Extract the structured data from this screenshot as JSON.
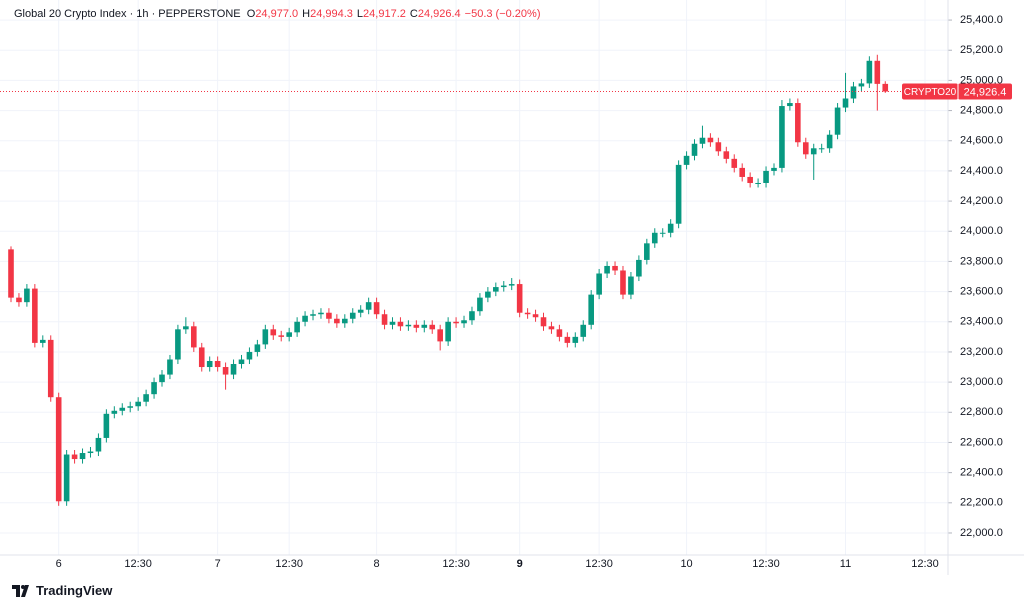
{
  "chart_data": {
    "type": "candlestick",
    "title": "Global 20 Crypto Index · 1h · PEPPERSTONE",
    "ohlc_legend": [
      {
        "name": "O",
        "label": "24,977.0"
      },
      {
        "name": "H",
        "label": "24,994.3"
      },
      {
        "name": "L",
        "label": "24,917.2"
      },
      {
        "name": "C",
        "label": "24,926.4"
      }
    ],
    "change": "−50.3 (−0.20%)",
    "price_tag": {
      "symbol": "CRYPTO20",
      "label": "24,926.4"
    },
    "footer": "TradingView",
    "up_color": "#089981",
    "down_color": "#f23645",
    "grid": true,
    "categories": [
      null,
      null,
      null,
      null,
      null,
      null,
      "6",
      null,
      null,
      null,
      null,
      null,
      null,
      null,
      null,
      null,
      "12:30",
      null,
      null,
      null,
      null,
      null,
      null,
      null,
      null,
      null,
      "7",
      null,
      null,
      null,
      null,
      null,
      null,
      null,
      null,
      "12:30",
      null,
      null,
      null,
      null,
      null,
      null,
      null,
      null,
      null,
      null,
      "8",
      null,
      null,
      null,
      null,
      null,
      null,
      null,
      null,
      null,
      "12:30",
      null,
      null,
      null,
      null,
      null,
      null,
      null,
      "9",
      null,
      null,
      null,
      null,
      null,
      null,
      null,
      null,
      null,
      "12:30",
      null,
      null,
      null,
      null,
      null,
      null,
      null,
      null,
      null,
      null,
      "10",
      null,
      null,
      null,
      null,
      null,
      null,
      null,
      null,
      null,
      "12:30",
      null,
      null,
      null,
      null,
      null,
      null,
      null,
      null,
      null,
      "11",
      null,
      null,
      null,
      null,
      null,
      null,
      null,
      null,
      null,
      "12:30"
    ],
    "open": [
      23880,
      23560,
      23530,
      23620,
      23260,
      23280,
      22900,
      22210,
      22520,
      22490,
      22530,
      22540,
      22630,
      22790,
      22810,
      22830,
      22840,
      22870,
      22920,
      23000,
      23050,
      23150,
      23350,
      23370,
      23230,
      23100,
      23140,
      23100,
      23050,
      23120,
      23150,
      23200,
      23250,
      23350,
      23310,
      23300,
      23330,
      23400,
      23440,
      23450,
      23460,
      23420,
      23390,
      23420,
      23460,
      23480,
      23530,
      23450,
      23380,
      23400,
      23370,
      23380,
      23360,
      23380,
      23350,
      23270,
      23400,
      23390,
      23410,
      23470,
      23560,
      23600,
      23630,
      23640,
      23650,
      23460,
      23450,
      23430,
      23370,
      23350,
      23300,
      23260,
      23300,
      23380,
      23580,
      23720,
      23770,
      23740,
      23580,
      23700,
      23810,
      23920,
      23990,
      23990,
      24050,
      24440,
      24500,
      24580,
      24620,
      24590,
      24530,
      24480,
      24420,
      24360,
      24320,
      24320,
      24400,
      24420,
      24830,
      24850,
      24590,
      24510,
      24550,
      24550,
      24640,
      24820,
      24880,
      24960,
      24980,
      25130,
      24977.0,
      null,
      null,
      null,
      null,
      null
    ],
    "high": [
      23900,
      23590,
      23650,
      23650,
      23310,
      23310,
      22930,
      22550,
      22550,
      22560,
      22570,
      22660,
      22820,
      22840,
      22860,
      22870,
      22900,
      22950,
      23030,
      23080,
      23180,
      23380,
      23430,
      23400,
      23260,
      23170,
      23170,
      23130,
      23150,
      23180,
      23230,
      23280,
      23380,
      23380,
      23340,
      23360,
      23430,
      23470,
      23480,
      23490,
      23490,
      23450,
      23450,
      23490,
      23510,
      23560,
      23560,
      23480,
      23430,
      23430,
      23410,
      23410,
      23410,
      23410,
      23380,
      23430,
      23430,
      23440,
      23500,
      23590,
      23630,
      23660,
      23670,
      23690,
      23680,
      23490,
      23480,
      23460,
      23400,
      23380,
      23330,
      23330,
      23410,
      23610,
      23750,
      23800,
      23800,
      23770,
      23730,
      23840,
      23950,
      24020,
      24020,
      24080,
      24470,
      24530,
      24610,
      24700,
      24650,
      24620,
      24560,
      24510,
      24450,
      24390,
      24350,
      24430,
      24450,
      24870,
      24880,
      24880,
      24620,
      24580,
      24580,
      24670,
      24850,
      25050,
      24990,
      25010,
      25160,
      25170,
      24994.3,
      null,
      null,
      null,
      null,
      null
    ],
    "low": [
      23530,
      23500,
      23500,
      23230,
      23230,
      22870,
      22180,
      22180,
      22460,
      22460,
      22500,
      22510,
      22600,
      22760,
      22780,
      22800,
      22810,
      22840,
      22890,
      22970,
      23020,
      23120,
      23320,
      23200,
      23070,
      23070,
      23070,
      22950,
      23020,
      23090,
      23120,
      23170,
      23220,
      23280,
      23270,
      23270,
      23300,
      23370,
      23410,
      23420,
      23390,
      23360,
      23360,
      23390,
      23430,
      23450,
      23420,
      23350,
      23350,
      23340,
      23340,
      23330,
      23330,
      23320,
      23210,
      23240,
      23360,
      23360,
      23380,
      23440,
      23530,
      23570,
      23600,
      23610,
      23430,
      23420,
      23400,
      23340,
      23320,
      23270,
      23230,
      23230,
      23270,
      23350,
      23550,
      23690,
      23710,
      23550,
      23550,
      23670,
      23780,
      23890,
      23960,
      23960,
      24020,
      24410,
      24470,
      24550,
      24560,
      24500,
      24450,
      24390,
      24330,
      24290,
      24290,
      24290,
      24370,
      24390,
      24800,
      24560,
      24480,
      24340,
      24520,
      24520,
      24610,
      24790,
      24850,
      24930,
      24950,
      24800,
      24917.2,
      null,
      null,
      null,
      null,
      null
    ],
    "close": [
      23560,
      23530,
      23620,
      23260,
      23280,
      22900,
      22210,
      22520,
      22490,
      22530,
      22540,
      22630,
      22790,
      22810,
      22830,
      22840,
      22870,
      22920,
      23000,
      23050,
      23150,
      23350,
      23370,
      23230,
      23100,
      23140,
      23100,
      23050,
      23120,
      23150,
      23200,
      23250,
      23350,
      23310,
      23300,
      23330,
      23400,
      23440,
      23450,
      23460,
      23420,
      23390,
      23420,
      23460,
      23480,
      23530,
      23450,
      23380,
      23400,
      23370,
      23380,
      23360,
      23380,
      23350,
      23270,
      23400,
      23390,
      23410,
      23470,
      23560,
      23600,
      23630,
      23640,
      23650,
      23460,
      23450,
      23430,
      23370,
      23350,
      23300,
      23260,
      23300,
      23380,
      23580,
      23720,
      23770,
      23740,
      23580,
      23700,
      23810,
      23920,
      23990,
      23990,
      24050,
      24440,
      24500,
      24580,
      24620,
      24590,
      24530,
      24480,
      24420,
      24360,
      24320,
      24320,
      24400,
      24420,
      24830,
      24850,
      24590,
      24510,
      24550,
      24550,
      24640,
      24820,
      24880,
      24960,
      24980,
      25130,
      24977,
      24926.4,
      null,
      null,
      null,
      null,
      null
    ],
    "ylim": [
      21854,
      25533
    ],
    "yticks": [
      {
        "value": 22000,
        "label": "22,000.0"
      },
      {
        "value": 22200,
        "label": "22,200.0"
      },
      {
        "value": 22400,
        "label": "22,400.0"
      },
      {
        "value": 22600,
        "label": "22,600.0"
      },
      {
        "value": 22800,
        "label": "22,800.0"
      },
      {
        "value": 23000,
        "label": "23,000.0"
      },
      {
        "value": 23200,
        "label": "23,200.0"
      },
      {
        "value": 23400,
        "label": "23,400.0"
      },
      {
        "value": 23600,
        "label": "23,600.0"
      },
      {
        "value": 23800,
        "label": "23,800.0"
      },
      {
        "value": 24000,
        "label": "24,000.0"
      },
      {
        "value": 24200,
        "label": "24,200.0"
      },
      {
        "value": 24400,
        "label": "24,400.0"
      },
      {
        "value": 24600,
        "label": "24,600.0"
      },
      {
        "value": 24800,
        "label": "24,800.0"
      },
      {
        "value": 25000,
        "label": "25,000.0"
      },
      {
        "value": 25200,
        "label": "25,200.0"
      },
      {
        "value": 25400,
        "label": "25,400.0"
      }
    ]
  }
}
